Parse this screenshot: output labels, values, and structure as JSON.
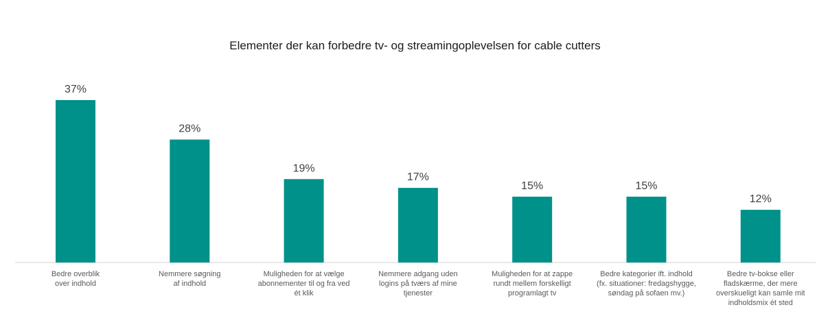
{
  "chart_data": {
    "type": "bar",
    "title": "Elementer der kan forbedre tv- og streamingoplevelsen for cable cutters",
    "xlabel": "",
    "ylabel": "",
    "ylim": [
      0,
      40
    ],
    "grid": false,
    "legend": "none",
    "bar_color": "#00918A",
    "axis_color": "#d0d0d0",
    "categories": [
      [
        "Bedre overblik",
        "over indhold"
      ],
      [
        "Nemmere søgning",
        "af indhold"
      ],
      [
        "Muligheden for at vælge",
        "abonnementer til og fra ved",
        "ét klik"
      ],
      [
        "Nemmere adgang uden",
        "logins på tværs af mine",
        "tjenester"
      ],
      [
        "Muligheden for at zappe",
        "rundt mellem forskelligt",
        "programlagt tv"
      ],
      [
        "Bedre kategorier ift. indhold",
        "(fx. situationer: fredagshygge,",
        "søndag på sofaen mv.)"
      ],
      [
        "Bedre tv-bokse eller",
        "fladskærme, der mere",
        "overskueligt kan samle mit",
        "indholdsmix ét sted"
      ]
    ],
    "values": [
      37,
      28,
      19,
      17,
      15,
      15,
      12
    ],
    "value_labels": [
      "37%",
      "28%",
      "19%",
      "17%",
      "15%",
      "15%",
      "12%"
    ]
  }
}
